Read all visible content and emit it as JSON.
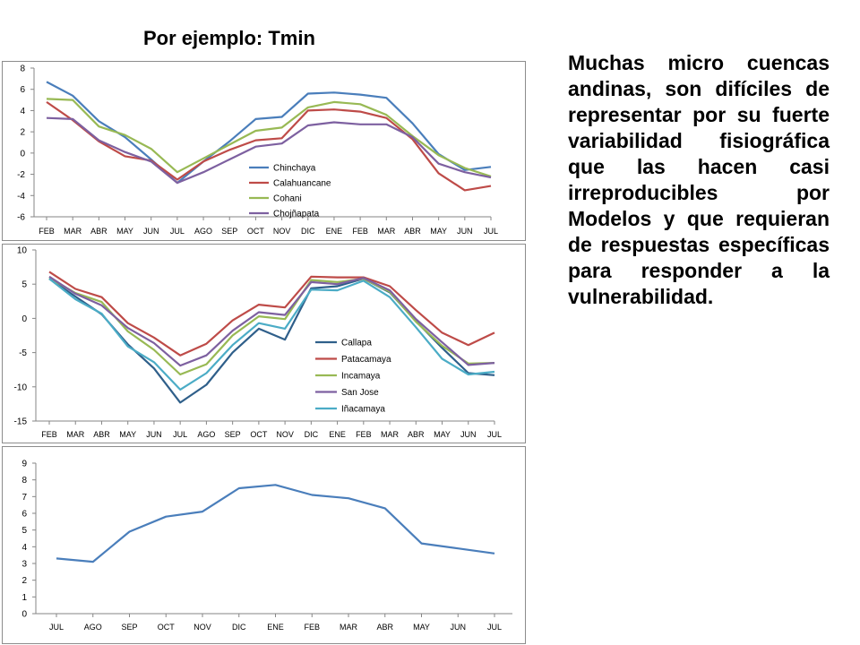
{
  "title": "Por ejemplo: Tmin",
  "paragraph": "Muchas micro cuencas andinas, son difíciles de representar por su fuerte variabilidad fisiográfica que las hacen casi irreproducibles por Modelos y que requieran de respuestas específicas para responder a la vulnerabilidad.",
  "chart_data": [
    {
      "type": "line",
      "categories": [
        "FEB",
        "MAR",
        "ABR",
        "MAY",
        "JUN",
        "JUL",
        "AGO",
        "SEP",
        "OCT",
        "NOV",
        "DIC",
        "ENE",
        "FEB",
        "MAR",
        "ABR",
        "MAY",
        "JUN",
        "JUL"
      ],
      "ylim": [
        -6,
        8
      ],
      "yticks": [
        8,
        6,
        4,
        2,
        0,
        -2,
        -4,
        -6
      ],
      "grid": false,
      "legend": "inside-bottom-center",
      "series": [
        {
          "name": "Chinchaya",
          "color": "#4a7ebb",
          "values": [
            6.7,
            5.4,
            3.0,
            1.5,
            -0.6,
            -2.8,
            -0.8,
            1.1,
            3.2,
            3.4,
            5.6,
            5.7,
            5.5,
            5.2,
            2.8,
            -0.1,
            -1.6,
            -1.3
          ]
        },
        {
          "name": "Calahuancane",
          "color": "#be4b48",
          "values": [
            4.8,
            3.1,
            1.1,
            -0.3,
            -0.7,
            -2.5,
            -0.8,
            0.3,
            1.2,
            1.4,
            4.0,
            4.1,
            3.9,
            3.3,
            1.3,
            -1.9,
            -3.5,
            -3.1
          ]
        },
        {
          "name": "Cohani",
          "color": "#98b954",
          "values": [
            5.1,
            5.0,
            2.5,
            1.7,
            0.4,
            -1.8,
            -0.5,
            0.8,
            2.1,
            2.4,
            4.3,
            4.8,
            4.6,
            3.6,
            1.6,
            -0.2,
            -1.4,
            -2.2
          ]
        },
        {
          "name": "Chojñapata",
          "color": "#7d60a0",
          "values": [
            3.3,
            3.2,
            1.2,
            0.1,
            -0.8,
            -2.8,
            -1.8,
            -0.6,
            0.6,
            0.9,
            2.6,
            2.9,
            2.7,
            2.7,
            1.5,
            -1.0,
            -1.8,
            -2.3
          ]
        }
      ]
    },
    {
      "type": "line",
      "categories": [
        "FEB",
        "MAR",
        "ABR",
        "MAY",
        "JUN",
        "JUL",
        "AGO",
        "SEP",
        "OCT",
        "NOV",
        "DIC",
        "ENE",
        "FEB",
        "MAR",
        "ABR",
        "MAY",
        "JUN",
        "JUL"
      ],
      "ylim": [
        -15,
        10
      ],
      "yticks": [
        10,
        5,
        0,
        -5,
        -10,
        -15
      ],
      "grid": false,
      "legend": "inside-bottom-right",
      "series": [
        {
          "name": "Callapa",
          "color": "#2f5f8a",
          "values": [
            5.8,
            3.2,
            0.6,
            -3.8,
            -7.3,
            -12.3,
            -9.7,
            -5.0,
            -1.5,
            -3.1,
            4.4,
            4.7,
            5.8,
            3.8,
            -0.4,
            -4.3,
            -8.0,
            -8.3
          ]
        },
        {
          "name": "Patacamaya",
          "color": "#be4b48",
          "values": [
            6.8,
            4.3,
            3.1,
            -0.7,
            -2.8,
            -5.4,
            -3.7,
            -0.3,
            2.0,
            1.6,
            6.1,
            6.0,
            6.0,
            4.7,
            1.2,
            -2.1,
            -3.9,
            -2.1
          ]
        },
        {
          "name": "Incamaya",
          "color": "#98b954",
          "values": [
            5.9,
            3.7,
            2.4,
            -1.9,
            -4.6,
            -8.2,
            -6.7,
            -2.5,
            0.3,
            -0.1,
            5.6,
            5.3,
            5.8,
            3.9,
            -0.5,
            -4.0,
            -6.6,
            -6.5
          ]
        },
        {
          "name": "San Jose",
          "color": "#7d60a0",
          "values": [
            6.1,
            3.6,
            1.9,
            -1.4,
            -3.6,
            -6.9,
            -5.4,
            -1.8,
            0.9,
            0.5,
            5.3,
            5.0,
            5.9,
            4.1,
            -0.1,
            -3.5,
            -6.8,
            -6.5
          ]
        },
        {
          "name": "Iñacamaya",
          "color": "#4bacc6",
          "values": [
            5.8,
            2.8,
            0.7,
            -4.1,
            -6.4,
            -10.4,
            -8.0,
            -3.9,
            -0.7,
            -1.5,
            4.2,
            4.1,
            5.5,
            3.1,
            -1.3,
            -5.9,
            -8.2,
            -7.8
          ]
        }
      ]
    },
    {
      "type": "line",
      "categories": [
        "JUL",
        "AGO",
        "SEP",
        "OCT",
        "NOV",
        "DIC",
        "ENE",
        "FEB",
        "MAR",
        "ABR",
        "MAY",
        "JUN",
        "JUL"
      ],
      "ylim": [
        0,
        9
      ],
      "yticks": [
        9,
        8,
        7,
        6,
        5,
        4,
        3,
        2,
        1,
        0
      ],
      "grid": false,
      "series": [
        {
          "color": "#4a7ebb",
          "values": [
            3.3,
            3.1,
            4.9,
            5.8,
            6.1,
            7.5,
            7.7,
            7.1,
            6.9,
            6.3,
            4.2,
            3.9,
            3.6
          ]
        }
      ]
    }
  ]
}
